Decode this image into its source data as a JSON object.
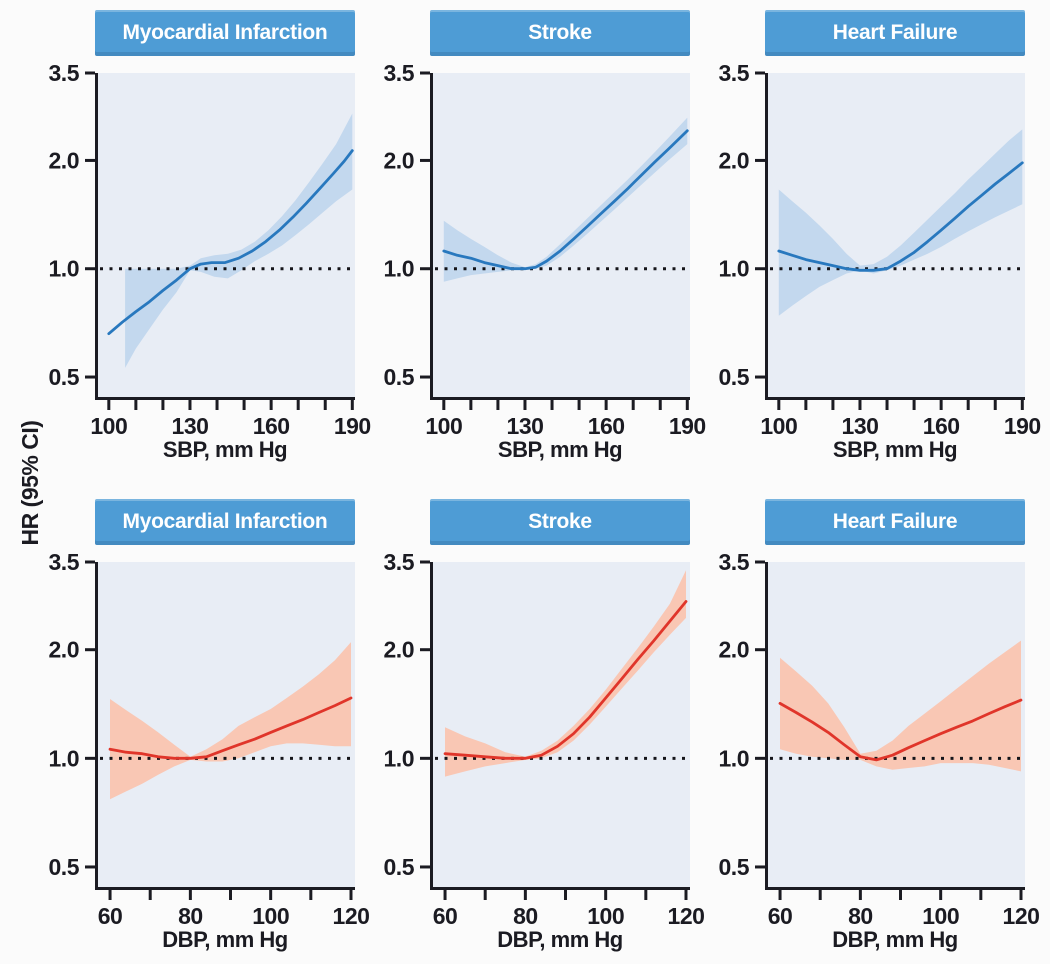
{
  "figure": {
    "y_axis_label": "HR (95% CI)",
    "reference_line_value": 1.0
  },
  "colors": {
    "banner_bg": "#4E9CD5",
    "banner_text": "#FFFFFF",
    "plot_bg": "#E8EDF5",
    "blue_line": "#2878BE",
    "blue_band": "#C3D8EE",
    "red_line": "#E0352A",
    "red_band": "#F9C7B4",
    "axis": "#1B1B22",
    "ref_dot": "#15151A",
    "text": "#1B1B22"
  },
  "chart_data": [
    {
      "type": "line",
      "row": 0,
      "col": 0,
      "title": "Myocardial Infarction",
      "xlabel": "SBP, mm Hg",
      "series_color": "blue",
      "x_ticks": [
        100,
        130,
        160,
        190
      ],
      "x_minor_step": 10,
      "xlim": [
        96,
        191
      ],
      "y_ticks": [
        0.5,
        1.0,
        2.0,
        3.5
      ],
      "y_tick_labels": [
        "0.5",
        "1.0",
        "2.0",
        "3.5"
      ],
      "ylim": [
        0.44,
        3.5
      ],
      "y_scale": "log",
      "curve": [
        [
          100,
          0.66
        ],
        [
          105,
          0.71
        ],
        [
          110,
          0.76
        ],
        [
          115,
          0.81
        ],
        [
          120,
          0.87
        ],
        [
          125,
          0.93
        ],
        [
          130,
          1.0
        ],
        [
          134,
          1.03
        ],
        [
          138,
          1.04
        ],
        [
          143,
          1.04
        ],
        [
          148,
          1.07
        ],
        [
          153,
          1.12
        ],
        [
          158,
          1.19
        ],
        [
          163,
          1.28
        ],
        [
          168,
          1.39
        ],
        [
          173,
          1.52
        ],
        [
          178,
          1.67
        ],
        [
          183,
          1.84
        ],
        [
          187,
          1.99
        ],
        [
          190,
          2.13
        ]
      ],
      "ci_band": [
        [
          106,
          0.53,
          1.0
        ],
        [
          110,
          0.6,
          1.0
        ],
        [
          115,
          0.68,
          1.0
        ],
        [
          120,
          0.77,
          1.0
        ],
        [
          125,
          0.86,
          1.0
        ],
        [
          130,
          0.99,
          1.02
        ],
        [
          134,
          0.98,
          1.07
        ],
        [
          139,
          0.95,
          1.09
        ],
        [
          144,
          0.94,
          1.1
        ],
        [
          149,
          0.99,
          1.13
        ],
        [
          154,
          1.05,
          1.19
        ],
        [
          159,
          1.1,
          1.28
        ],
        [
          164,
          1.16,
          1.4
        ],
        [
          169,
          1.24,
          1.55
        ],
        [
          174,
          1.33,
          1.74
        ],
        [
          179,
          1.43,
          1.96
        ],
        [
          184,
          1.54,
          2.22
        ],
        [
          190,
          1.66,
          2.7
        ]
      ]
    },
    {
      "type": "line",
      "row": 0,
      "col": 1,
      "title": "Stroke",
      "xlabel": "SBP, mm Hg",
      "series_color": "blue",
      "x_ticks": [
        100,
        130,
        160,
        190
      ],
      "x_minor_step": 10,
      "xlim": [
        96,
        191
      ],
      "y_ticks": [
        0.5,
        1.0,
        2.0,
        3.5
      ],
      "y_tick_labels": [
        "0.5",
        "1.0",
        "2.0",
        "3.5"
      ],
      "ylim": [
        0.44,
        3.5
      ],
      "y_scale": "log",
      "curve": [
        [
          100,
          1.12
        ],
        [
          105,
          1.09
        ],
        [
          110,
          1.07
        ],
        [
          115,
          1.04
        ],
        [
          120,
          1.02
        ],
        [
          125,
          1.0
        ],
        [
          130,
          1.0
        ],
        [
          134,
          1.01
        ],
        [
          138,
          1.05
        ],
        [
          143,
          1.12
        ],
        [
          148,
          1.21
        ],
        [
          153,
          1.31
        ],
        [
          158,
          1.42
        ],
        [
          163,
          1.54
        ],
        [
          168,
          1.67
        ],
        [
          173,
          1.82
        ],
        [
          178,
          1.98
        ],
        [
          183,
          2.15
        ],
        [
          190,
          2.42
        ]
      ],
      "ci_band": [
        [
          100,
          0.92,
          1.36
        ],
        [
          105,
          0.94,
          1.28
        ],
        [
          110,
          0.96,
          1.21
        ],
        [
          115,
          0.97,
          1.15
        ],
        [
          120,
          0.98,
          1.09
        ],
        [
          125,
          0.99,
          1.04
        ],
        [
          130,
          1.0,
          1.01
        ],
        [
          134,
          1.0,
          1.03
        ],
        [
          138,
          1.02,
          1.08
        ],
        [
          143,
          1.08,
          1.17
        ],
        [
          148,
          1.16,
          1.27
        ],
        [
          153,
          1.25,
          1.38
        ],
        [
          158,
          1.35,
          1.5
        ],
        [
          163,
          1.46,
          1.63
        ],
        [
          168,
          1.58,
          1.77
        ],
        [
          173,
          1.71,
          1.93
        ],
        [
          178,
          1.85,
          2.11
        ],
        [
          183,
          2.0,
          2.31
        ],
        [
          190,
          2.22,
          2.63
        ]
      ]
    },
    {
      "type": "line",
      "row": 0,
      "col": 2,
      "title": "Heart Failure",
      "xlabel": "SBP, mm Hg",
      "series_color": "blue",
      "x_ticks": [
        100,
        130,
        160,
        190
      ],
      "x_minor_step": 10,
      "xlim": [
        96,
        191
      ],
      "y_ticks": [
        0.5,
        1.0,
        2.0,
        3.5
      ],
      "y_tick_labels": [
        "0.5",
        "1.0",
        "2.0",
        "3.5"
      ],
      "ylim": [
        0.44,
        3.5
      ],
      "y_scale": "log",
      "curve": [
        [
          100,
          1.12
        ],
        [
          105,
          1.09
        ],
        [
          110,
          1.06
        ],
        [
          115,
          1.04
        ],
        [
          120,
          1.02
        ],
        [
          125,
          1.0
        ],
        [
          130,
          0.99
        ],
        [
          135,
          0.99
        ],
        [
          140,
          1.0
        ],
        [
          145,
          1.05
        ],
        [
          150,
          1.11
        ],
        [
          155,
          1.19
        ],
        [
          160,
          1.28
        ],
        [
          165,
          1.38
        ],
        [
          170,
          1.49
        ],
        [
          175,
          1.6
        ],
        [
          180,
          1.72
        ],
        [
          185,
          1.84
        ],
        [
          190,
          1.97
        ]
      ],
      "ci_band": [
        [
          100,
          0.74,
          1.66
        ],
        [
          105,
          0.79,
          1.54
        ],
        [
          110,
          0.84,
          1.43
        ],
        [
          115,
          0.89,
          1.32
        ],
        [
          120,
          0.93,
          1.21
        ],
        [
          125,
          0.97,
          1.1
        ],
        [
          130,
          0.99,
          1.02
        ],
        [
          135,
          0.97,
          1.03
        ],
        [
          140,
          0.99,
          1.08
        ],
        [
          145,
          1.02,
          1.16
        ],
        [
          150,
          1.06,
          1.26
        ],
        [
          155,
          1.1,
          1.37
        ],
        [
          160,
          1.15,
          1.49
        ],
        [
          165,
          1.21,
          1.62
        ],
        [
          170,
          1.27,
          1.77
        ],
        [
          175,
          1.33,
          1.92
        ],
        [
          180,
          1.39,
          2.09
        ],
        [
          185,
          1.45,
          2.27
        ],
        [
          190,
          1.51,
          2.44
        ]
      ]
    },
    {
      "type": "line",
      "row": 1,
      "col": 0,
      "title": "Myocardial Infarction",
      "xlabel": "DBP, mm Hg",
      "series_color": "red",
      "x_ticks": [
        60,
        80,
        100,
        120
      ],
      "x_minor_step": 10,
      "xlim": [
        57,
        121
      ],
      "y_ticks": [
        0.5,
        1.0,
        2.0,
        3.5
      ],
      "y_tick_labels": [
        "0.5",
        "1.0",
        "2.0",
        "3.5"
      ],
      "ylim": [
        0.44,
        3.5
      ],
      "y_scale": "log",
      "curve": [
        [
          60,
          1.06
        ],
        [
          64,
          1.04
        ],
        [
          68,
          1.03
        ],
        [
          72,
          1.01
        ],
        [
          76,
          1.0
        ],
        [
          80,
          1.0
        ],
        [
          84,
          1.01
        ],
        [
          88,
          1.05
        ],
        [
          92,
          1.09
        ],
        [
          96,
          1.13
        ],
        [
          100,
          1.18
        ],
        [
          104,
          1.23
        ],
        [
          108,
          1.28
        ],
        [
          112,
          1.34
        ],
        [
          116,
          1.4
        ],
        [
          120,
          1.47
        ]
      ],
      "ci_band": [
        [
          60,
          0.77,
          1.46
        ],
        [
          64,
          0.81,
          1.36
        ],
        [
          68,
          0.85,
          1.27
        ],
        [
          72,
          0.9,
          1.18
        ],
        [
          76,
          0.95,
          1.09
        ],
        [
          80,
          0.99,
          1.01
        ],
        [
          84,
          0.98,
          1.06
        ],
        [
          88,
          0.98,
          1.13
        ],
        [
          92,
          1.0,
          1.23
        ],
        [
          96,
          1.04,
          1.3
        ],
        [
          100,
          1.08,
          1.37
        ],
        [
          104,
          1.1,
          1.47
        ],
        [
          108,
          1.1,
          1.58
        ],
        [
          112,
          1.09,
          1.71
        ],
        [
          116,
          1.08,
          1.87
        ],
        [
          120,
          1.08,
          2.1
        ]
      ]
    },
    {
      "type": "line",
      "row": 1,
      "col": 1,
      "title": "Stroke",
      "xlabel": "DBP, mm Hg",
      "series_color": "red",
      "x_ticks": [
        60,
        80,
        100,
        120
      ],
      "x_minor_step": 10,
      "xlim": [
        57,
        121
      ],
      "y_ticks": [
        0.5,
        1.0,
        2.0,
        3.5
      ],
      "y_tick_labels": [
        "0.5",
        "1.0",
        "2.0",
        "3.5"
      ],
      "ylim": [
        0.44,
        3.5
      ],
      "y_scale": "log",
      "curve": [
        [
          60,
          1.03
        ],
        [
          65,
          1.02
        ],
        [
          70,
          1.01
        ],
        [
          75,
          1.0
        ],
        [
          80,
          1.0
        ],
        [
          84,
          1.02
        ],
        [
          88,
          1.08
        ],
        [
          92,
          1.17
        ],
        [
          96,
          1.3
        ],
        [
          100,
          1.47
        ],
        [
          104,
          1.66
        ],
        [
          108,
          1.88
        ],
        [
          112,
          2.12
        ],
        [
          116,
          2.4
        ],
        [
          120,
          2.72
        ]
      ],
      "ci_band": [
        [
          60,
          0.89,
          1.22
        ],
        [
          65,
          0.92,
          1.15
        ],
        [
          70,
          0.95,
          1.1
        ],
        [
          75,
          0.97,
          1.04
        ],
        [
          80,
          0.99,
          1.01
        ],
        [
          84,
          1.0,
          1.05
        ],
        [
          88,
          1.04,
          1.12
        ],
        [
          92,
          1.12,
          1.23
        ],
        [
          96,
          1.24,
          1.37
        ],
        [
          100,
          1.39,
          1.55
        ],
        [
          104,
          1.56,
          1.77
        ],
        [
          108,
          1.75,
          2.02
        ],
        [
          112,
          1.97,
          2.32
        ],
        [
          116,
          2.2,
          2.68
        ],
        [
          120,
          2.45,
          3.32
        ]
      ]
    },
    {
      "type": "line",
      "row": 1,
      "col": 2,
      "title": "Heart Failure",
      "xlabel": "DBP, mm Hg",
      "series_color": "red",
      "x_ticks": [
        60,
        80,
        100,
        120
      ],
      "x_minor_step": 10,
      "xlim": [
        57,
        121
      ],
      "y_ticks": [
        0.5,
        1.0,
        2.0,
        3.5
      ],
      "y_tick_labels": [
        "0.5",
        "1.0",
        "2.0",
        "3.5"
      ],
      "ylim": [
        0.44,
        3.5
      ],
      "y_scale": "log",
      "curve": [
        [
          60,
          1.42
        ],
        [
          64,
          1.34
        ],
        [
          68,
          1.26
        ],
        [
          72,
          1.18
        ],
        [
          76,
          1.09
        ],
        [
          80,
          1.01
        ],
        [
          84,
          0.99
        ],
        [
          88,
          1.02
        ],
        [
          92,
          1.07
        ],
        [
          96,
          1.12
        ],
        [
          100,
          1.17
        ],
        [
          104,
          1.22
        ],
        [
          108,
          1.27
        ],
        [
          112,
          1.33
        ],
        [
          116,
          1.39
        ],
        [
          120,
          1.45
        ]
      ],
      "ci_band": [
        [
          60,
          1.06,
          1.9
        ],
        [
          64,
          1.03,
          1.74
        ],
        [
          68,
          1.01,
          1.59
        ],
        [
          72,
          1.0,
          1.42
        ],
        [
          76,
          0.99,
          1.22
        ],
        [
          80,
          0.99,
          1.03
        ],
        [
          84,
          0.95,
          1.05
        ],
        [
          88,
          0.93,
          1.12
        ],
        [
          92,
          0.94,
          1.23
        ],
        [
          96,
          0.95,
          1.33
        ],
        [
          100,
          0.97,
          1.44
        ],
        [
          104,
          0.97,
          1.56
        ],
        [
          108,
          0.97,
          1.69
        ],
        [
          112,
          0.96,
          1.83
        ],
        [
          116,
          0.94,
          1.97
        ],
        [
          120,
          0.92,
          2.12
        ]
      ]
    }
  ]
}
